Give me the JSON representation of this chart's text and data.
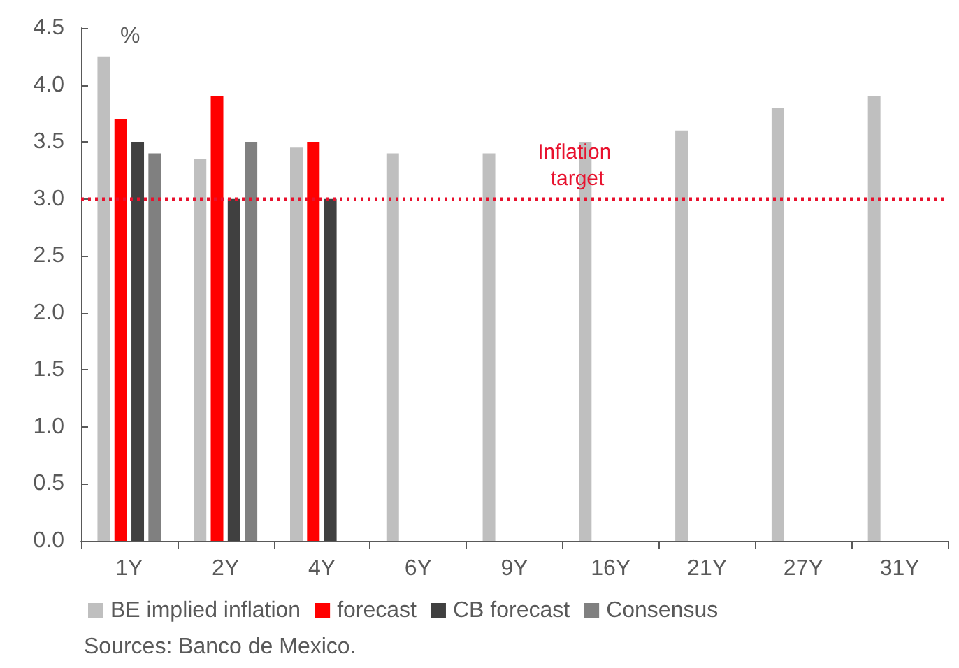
{
  "chart_data": {
    "type": "bar",
    "categories": [
      "1Y",
      "2Y",
      "4Y",
      "6Y",
      "9Y",
      "16Y",
      "21Y",
      "27Y",
      "31Y"
    ],
    "series": [
      {
        "name": "BE implied inflation",
        "color": "#bfbfbf",
        "values": [
          4.25,
          3.35,
          3.45,
          3.4,
          3.4,
          3.5,
          3.6,
          3.8,
          3.9
        ]
      },
      {
        "name": "forecast",
        "color": "#ff0000",
        "values": [
          3.7,
          3.9,
          3.5,
          null,
          null,
          null,
          null,
          null,
          null
        ]
      },
      {
        "name": "CB forecast",
        "color": "#404040",
        "values": [
          3.5,
          3.0,
          3.0,
          null,
          null,
          null,
          null,
          null,
          null
        ]
      },
      {
        "name": "Consensus",
        "color": "#808080",
        "values": [
          3.4,
          3.5,
          null,
          null,
          null,
          null,
          null,
          null,
          null
        ]
      }
    ],
    "ylim": [
      0,
      4.5
    ],
    "yticks": [
      {
        "value": 0,
        "label": "0.0"
      },
      0.5,
      {
        "value": 1,
        "label": "1.0"
      },
      1.5,
      {
        "value": 2,
        "label": "2.0"
      },
      2.5,
      {
        "value": 3,
        "label": "3.0"
      },
      3.5,
      {
        "value": 4,
        "label": "4.0"
      },
      4.5
    ],
    "ylabel": "%",
    "ref_lines": [
      {
        "axis": "y",
        "value": 3.0,
        "label": "Inflation target",
        "color": "#e8112d",
        "line_style": "dotted"
      }
    ],
    "annotations": [
      "Sources: Banco de Mexico."
    ],
    "grid": false,
    "legend": "bottom"
  }
}
